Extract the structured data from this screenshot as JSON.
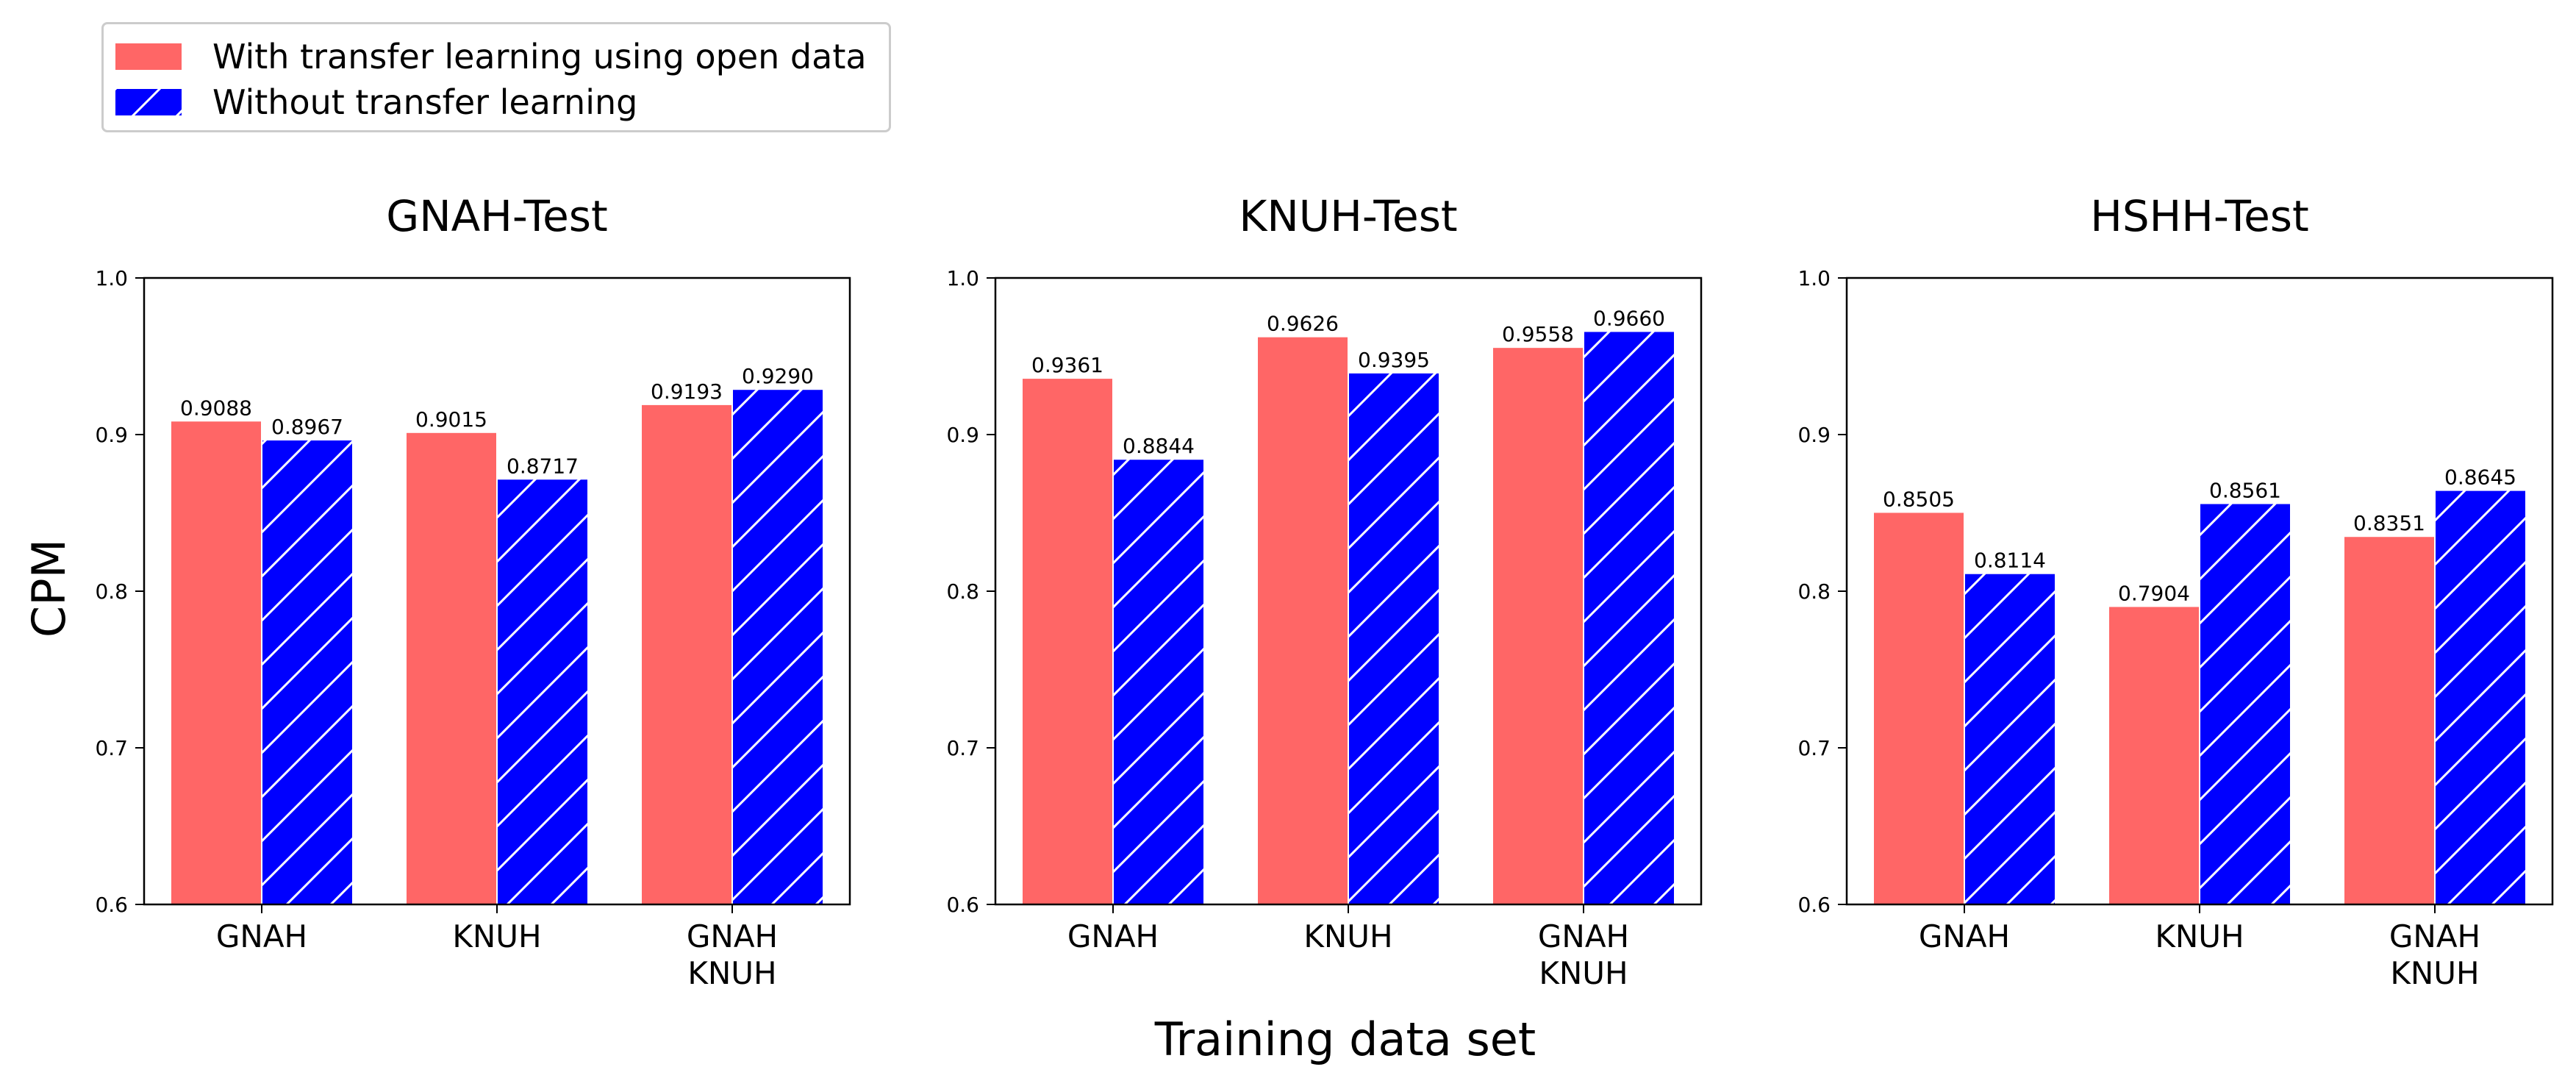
{
  "chart_data": {
    "type": "bar",
    "figure_xlabel": "Training data set",
    "figure_ylabel": "CPM",
    "legend_position": "top-left",
    "series": [
      {
        "name": "With transfer learning using open data",
        "color": "#FF6666",
        "hatch": "none"
      },
      {
        "name": "Without transfer learning",
        "color": "#0000FF",
        "hatch": "diagonal-white"
      }
    ],
    "yticks": [
      "0.6",
      "0.7",
      "0.8",
      "0.9",
      "1.0"
    ],
    "ylim": [
      0.6,
      1.0
    ],
    "categories": [
      [
        "GNAH"
      ],
      [
        "KNUH"
      ],
      [
        "GNAH",
        "KNUH"
      ]
    ],
    "subplots": [
      {
        "title": "GNAH-Test",
        "values": [
          [
            0.9088,
            0.9015,
            0.9193
          ],
          [
            0.8967,
            0.8717,
            0.929
          ]
        ],
        "labels": [
          [
            "0.9088",
            "0.9015",
            "0.9193"
          ],
          [
            "0.8967",
            "0.8717",
            "0.9290"
          ]
        ]
      },
      {
        "title": "KNUH-Test",
        "values": [
          [
            0.9361,
            0.9626,
            0.9558
          ],
          [
            0.8844,
            0.9395,
            0.966
          ]
        ],
        "labels": [
          [
            "0.9361",
            "0.9626",
            "0.9558"
          ],
          [
            "0.8844",
            "0.9395",
            "0.9660"
          ]
        ]
      },
      {
        "title": "HSHH-Test",
        "values": [
          [
            0.8505,
            0.7904,
            0.8351
          ],
          [
            0.8114,
            0.8561,
            0.8645
          ]
        ],
        "labels": [
          [
            "0.8505",
            "0.7904",
            "0.8351"
          ],
          [
            "0.8114",
            "0.8561",
            "0.8645"
          ]
        ]
      }
    ]
  }
}
